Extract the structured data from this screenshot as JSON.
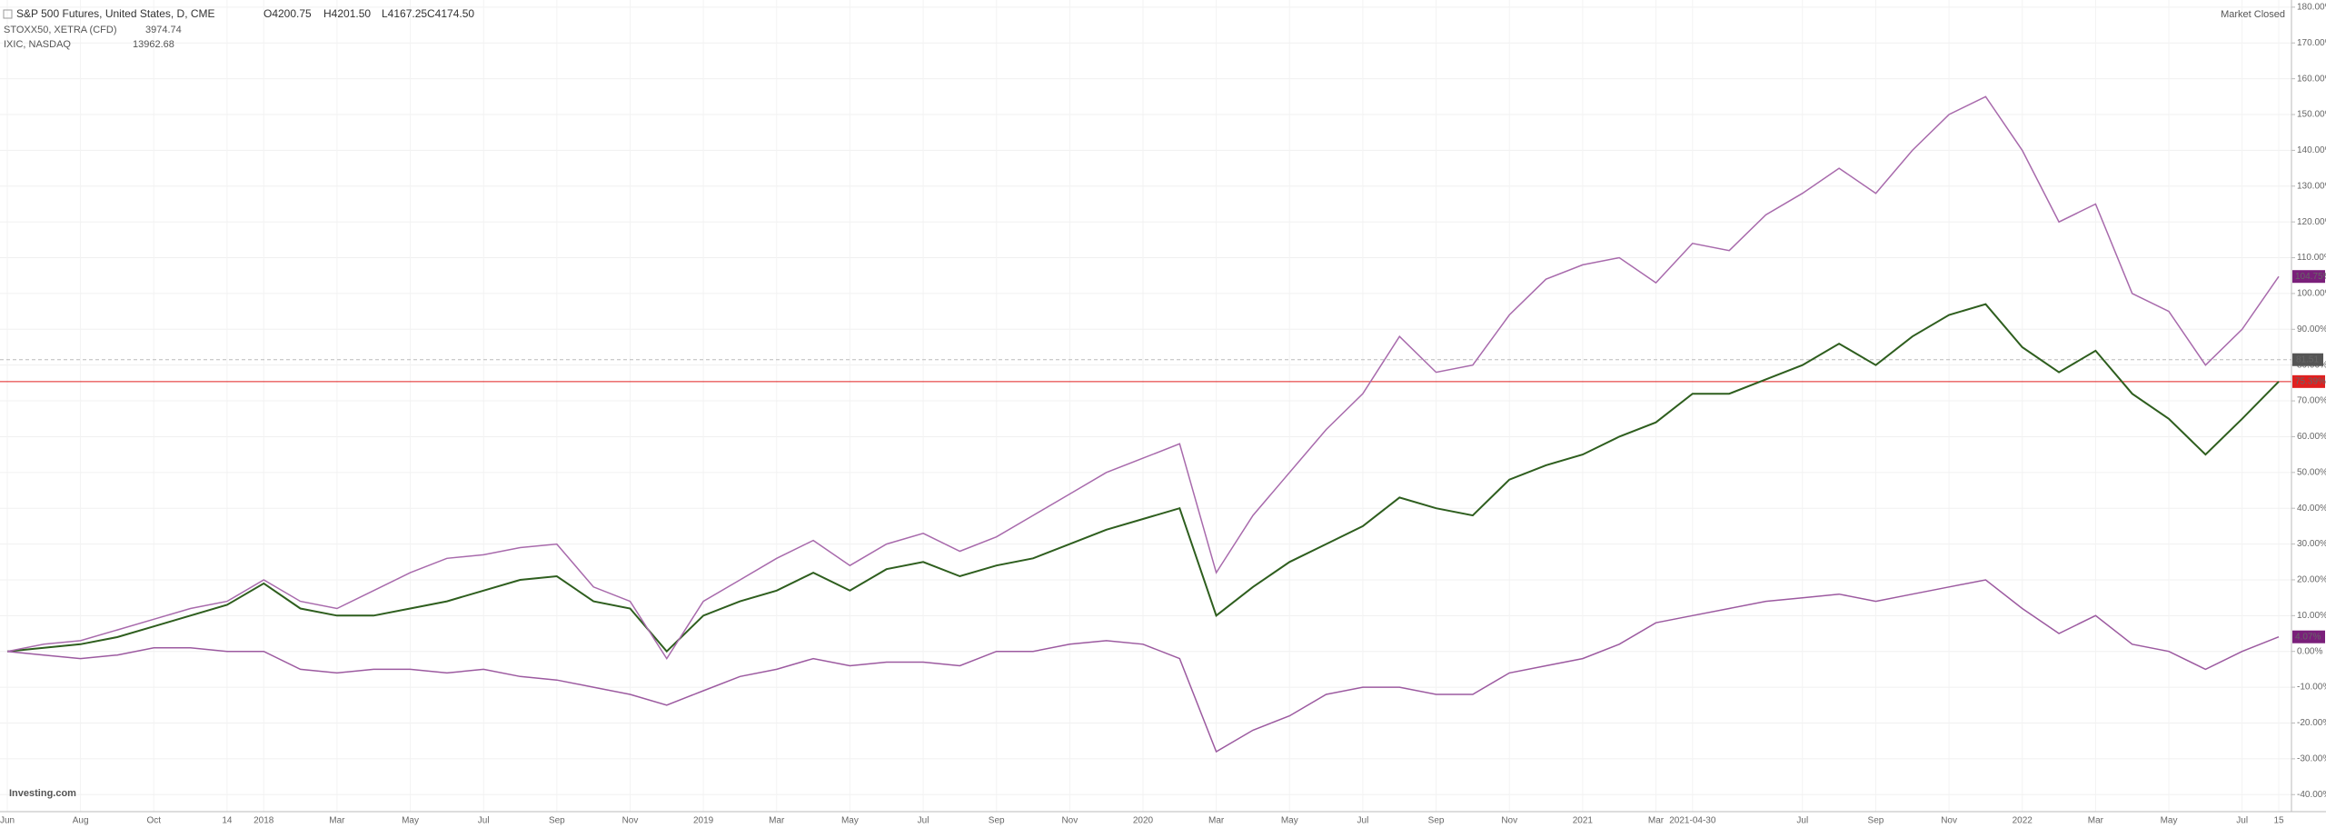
{
  "chart_data": {
    "type": "line",
    "header": {
      "main_symbol": "S&P 500 Futures, United States, D, CME",
      "ohlc": [
        "O4200.75",
        "H4201.50",
        "L4167.25",
        "C4174.50"
      ],
      "stoxx_price": "3974.74",
      "nasdaq_price": "13962.68"
    },
    "status": "Market Closed",
    "brand": "Investing.com",
    "crosshair": {
      "value": 81.51,
      "label": "81.51"
    },
    "categories": [
      "Jun",
      null,
      "Aug",
      null,
      "Oct",
      null,
      "14",
      "2018",
      null,
      "Mar",
      null,
      "May",
      null,
      "Jul",
      null,
      "Sep",
      null,
      "Nov",
      null,
      "2019",
      null,
      "Mar",
      null,
      "May",
      null,
      "Jul",
      null,
      "Sep",
      null,
      "Nov",
      null,
      "2020",
      null,
      "Mar",
      null,
      "May",
      null,
      "Jul",
      null,
      "Sep",
      null,
      "Nov",
      null,
      "2021",
      null,
      "Mar",
      "2021-04-30",
      null,
      null,
      "Jul",
      null,
      "Sep",
      null,
      "Nov",
      null,
      "2022",
      null,
      "Mar",
      null,
      "May",
      null,
      "Jul",
      "15"
    ],
    "highlight_category": 44,
    "series": [
      {
        "name": "S&P 500 Futures, United States, D, CME",
        "color": "#2e5e1e",
        "values": [
          0,
          1,
          2,
          4,
          7,
          10,
          13,
          19,
          12,
          10,
          10,
          12,
          14,
          17,
          20,
          21,
          14,
          12,
          0,
          10,
          14,
          17,
          22,
          17,
          23,
          25,
          21,
          24,
          26,
          30,
          34,
          37,
          40,
          10,
          18,
          25,
          30,
          35,
          43,
          40,
          38,
          48,
          52,
          55,
          60,
          64,
          72,
          72,
          76,
          80,
          86,
          80,
          88,
          94,
          97,
          85,
          78,
          84,
          72,
          65,
          55,
          65,
          75.39
        ],
        "value_labels": [
          null,
          null,
          null,
          null,
          null,
          null,
          null,
          null,
          null,
          null,
          null,
          null,
          null,
          null,
          null,
          null,
          null,
          null,
          null,
          null,
          null,
          null,
          null,
          null,
          null,
          null,
          null,
          null,
          null,
          null,
          null,
          null,
          null,
          null,
          null,
          null,
          null,
          null,
          null,
          null,
          null,
          null,
          null,
          null,
          null,
          null,
          null,
          null,
          null,
          null,
          null,
          null,
          null,
          null,
          null,
          null,
          null,
          null,
          null,
          null,
          null,
          null,
          "75.39%"
        ],
        "label_color": "#e02020",
        "reference_line": true
      },
      {
        "name": "STOXX50, XETRA (CFD)",
        "color": "#9c5aa0",
        "values": [
          0,
          -1,
          -2,
          -1,
          1,
          1,
          0,
          0,
          -5,
          -6,
          -5,
          -5,
          -6,
          -5,
          -7,
          -8,
          -10,
          -12,
          -15,
          -11,
          -7,
          -5,
          -2,
          -4,
          -3,
          -3,
          -4,
          0,
          0,
          2,
          3,
          2,
          -2,
          -28,
          -22,
          -18,
          -12,
          -10,
          -10,
          -12,
          -12,
          -6,
          -4,
          -2,
          2,
          8,
          10,
          12,
          14,
          15,
          16,
          14,
          16,
          18,
          20,
          12,
          5,
          10,
          2,
          0,
          -5,
          0,
          4.07
        ],
        "value_labels": [
          null,
          null,
          null,
          null,
          null,
          null,
          null,
          null,
          null,
          null,
          null,
          null,
          null,
          null,
          null,
          null,
          null,
          null,
          null,
          null,
          null,
          null,
          null,
          null,
          null,
          null,
          null,
          null,
          null,
          null,
          null,
          null,
          null,
          null,
          null,
          null,
          null,
          null,
          null,
          null,
          null,
          null,
          null,
          null,
          null,
          null,
          null,
          null,
          null,
          null,
          null,
          null,
          null,
          null,
          null,
          null,
          null,
          null,
          null,
          null,
          null,
          null,
          "4.07%"
        ],
        "label_color": "#7a1f7a"
      },
      {
        "name": "IXIC, NASDAQ",
        "color": "#a86aac",
        "values": [
          0,
          2,
          3,
          6,
          9,
          12,
          14,
          20,
          14,
          12,
          17,
          22,
          26,
          27,
          29,
          30,
          18,
          14,
          -2,
          14,
          20,
          26,
          31,
          24,
          30,
          33,
          28,
          32,
          38,
          44,
          50,
          54,
          58,
          22,
          38,
          50,
          62,
          72,
          88,
          78,
          80,
          94,
          104,
          108,
          110,
          103,
          114,
          112,
          122,
          128,
          135,
          128,
          140,
          150,
          155,
          140,
          120,
          125,
          100,
          95,
          80,
          90,
          104.75
        ],
        "value_labels": [
          null,
          null,
          null,
          null,
          null,
          null,
          null,
          null,
          null,
          null,
          null,
          null,
          null,
          null,
          null,
          null,
          null,
          null,
          null,
          null,
          null,
          null,
          null,
          null,
          null,
          null,
          null,
          null,
          null,
          null,
          null,
          null,
          null,
          null,
          null,
          null,
          null,
          null,
          null,
          null,
          null,
          null,
          null,
          null,
          null,
          null,
          null,
          null,
          null,
          null,
          null,
          null,
          null,
          null,
          null,
          null,
          null,
          null,
          null,
          null,
          null,
          null,
          "104.75%"
        ],
        "label_color": "#7a1f7a"
      }
    ],
    "ylim": [
      -44,
      182
    ],
    "yticks": [
      {
        "value": -40,
        "label": "-40.00%"
      },
      {
        "value": -30,
        "label": "-30.00%"
      },
      {
        "value": -20,
        "label": "-20.00%"
      },
      {
        "value": -10,
        "label": "-10.00%"
      },
      {
        "value": 0,
        "label": "0.00%"
      },
      {
        "value": 10,
        "label": "10.00%"
      },
      {
        "value": 20,
        "label": "20.00%"
      },
      {
        "value": 30,
        "label": "30.00%"
      },
      {
        "value": 40,
        "label": "40.00%"
      },
      {
        "value": 50,
        "label": "50.00%"
      },
      {
        "value": 60,
        "label": "60.00%"
      },
      {
        "value": 70,
        "label": "70.00%"
      },
      {
        "value": 80,
        "label": "80.00%"
      },
      {
        "value": 90,
        "label": "90.00%"
      },
      {
        "value": 100,
        "label": "100.00%"
      },
      {
        "value": 110,
        "label": "110.00%"
      },
      {
        "value": 120,
        "label": "120.00%"
      },
      {
        "value": 130,
        "label": "130.00%"
      },
      {
        "value": 140,
        "label": "140.00%"
      },
      {
        "value": 150,
        "label": "150.00%"
      },
      {
        "value": 160,
        "label": "160.00%"
      },
      {
        "value": 170,
        "label": "170.00%"
      },
      {
        "value": 180,
        "label": "180.00%"
      }
    ],
    "grid": true
  }
}
